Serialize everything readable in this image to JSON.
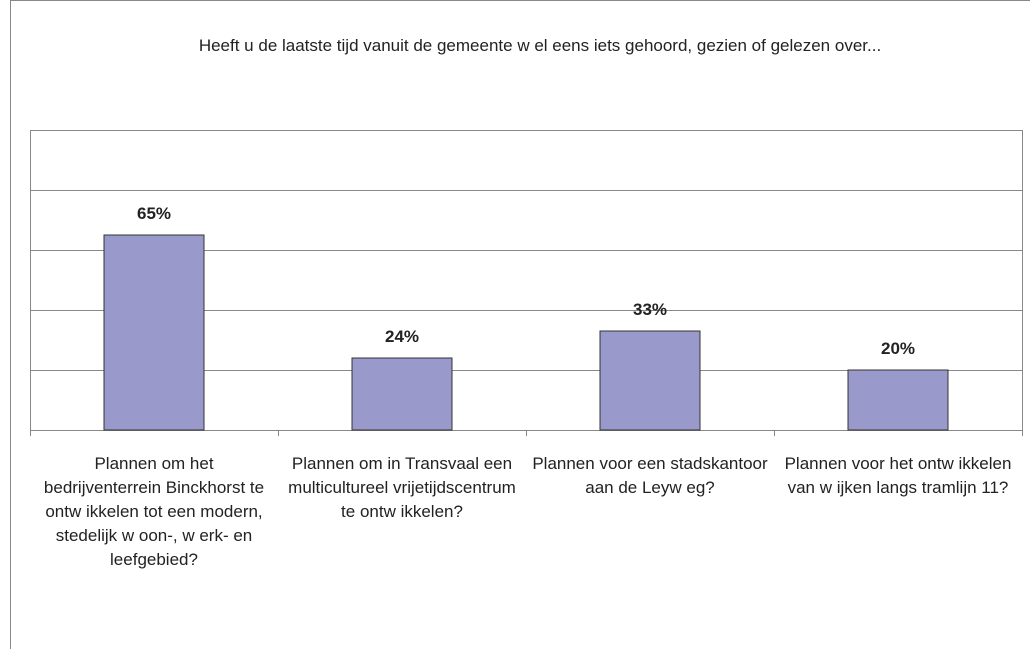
{
  "chart_data": {
    "type": "bar",
    "title": "Heeft u de laatste tijd vanuit de gemeente w el eens iets gehoord, gezien of gelezen over...",
    "categories": [
      "Plannen om het bedrijventerrein Binckhorst te ontw ikkelen tot een modern, stedelijk w oon-, w erk- en leefgebied?",
      "Plannen om in Transvaal een multicultureel vrijetijdscentrum te ontw ikkelen?",
      "Plannen voor een stadskantoor aan de Leyw eg?",
      "Plannen voor het ontw ikkelen van w ijken langs tramlijn 11?"
    ],
    "values": [
      65,
      24,
      33,
      20
    ],
    "value_labels": [
      "65%",
      "24%",
      "33%",
      "20%"
    ],
    "color": "#9999cc",
    "ylim": [
      0,
      100
    ],
    "yticks": [
      0,
      20,
      40,
      60,
      80,
      100
    ],
    "grid": true
  }
}
